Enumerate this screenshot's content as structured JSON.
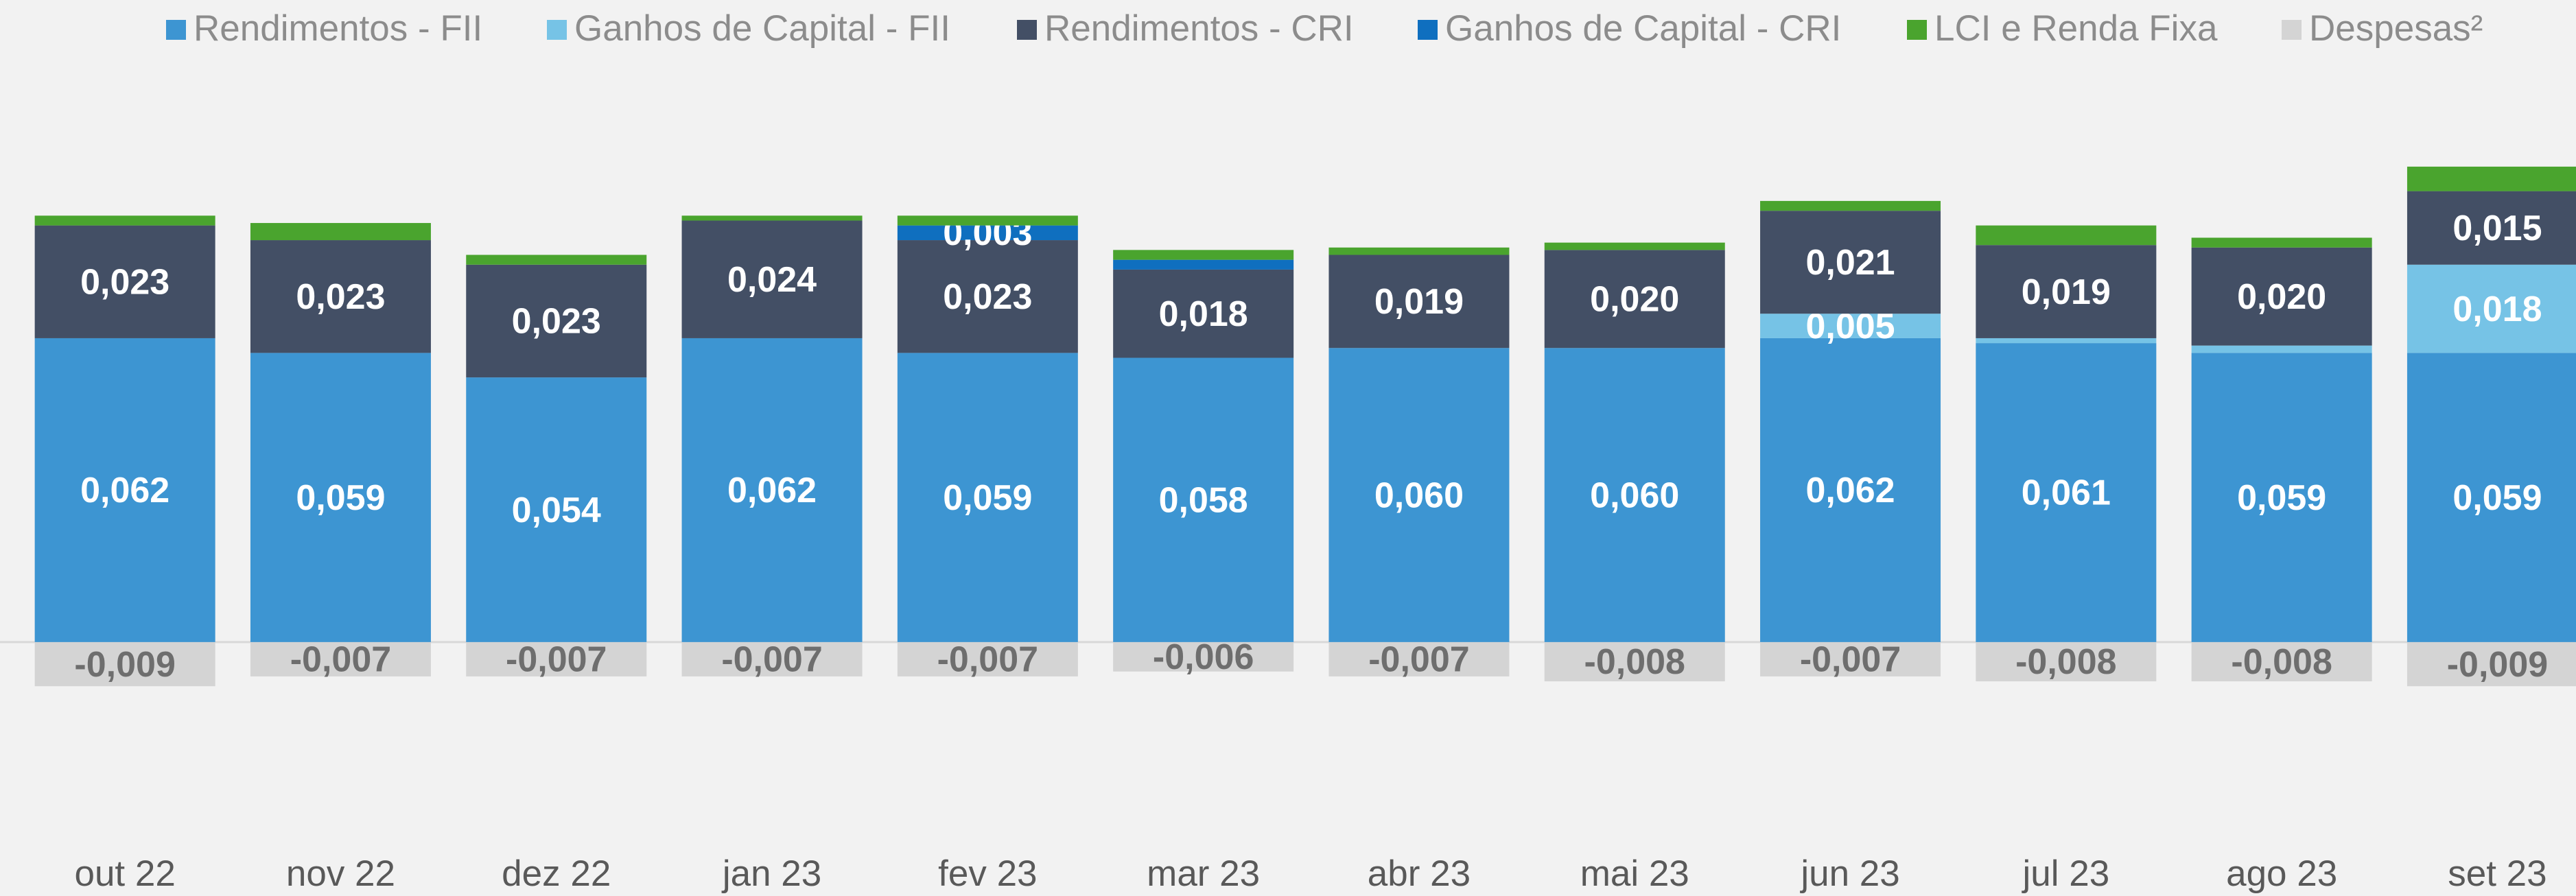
{
  "chart_data": {
    "type": "bar",
    "stacked": true,
    "categories": [
      "out 22",
      "nov 22",
      "dez 22",
      "jan 23",
      "fev 23",
      "mar 23",
      "abr 23",
      "mai 23",
      "jun 23",
      "jul 23",
      "ago 23",
      "set 23"
    ],
    "ylim": [
      -0.035,
      0.11
    ],
    "series": [
      {
        "name": "Rendimentos - FII",
        "color": "#3d95d2",
        "values": [
          0.062,
          0.059,
          0.054,
          0.062,
          0.059,
          0.058,
          0.06,
          0.06,
          0.062,
          0.061,
          0.059,
          0.059
        ],
        "value_labels": [
          "0,062",
          "0,059",
          "0,054",
          "0,062",
          "0,059",
          "0,058",
          "0,060",
          "0,060",
          "0,062",
          "0,061",
          "0,059",
          "0,059"
        ]
      },
      {
        "name": "Ganhos de Capital - FII",
        "color": "#76c3e6",
        "values": [
          0,
          0,
          0,
          0,
          0,
          0,
          0,
          0,
          0.005,
          0.001,
          0.0015,
          0.018
        ],
        "value_labels": [
          null,
          null,
          null,
          null,
          null,
          null,
          null,
          null,
          "0,005",
          null,
          null,
          "0,018"
        ]
      },
      {
        "name": "Rendimentos - CRI",
        "color": "#434f65",
        "values": [
          0.023,
          0.023,
          0.023,
          0.024,
          0.023,
          0.018,
          0.019,
          0.02,
          0.021,
          0.019,
          0.02,
          0.015
        ],
        "value_labels": [
          "0,023",
          "0,023",
          "0,023",
          "0,024",
          "0,023",
          "0,018",
          "0,019",
          "0,020",
          "0,021",
          "0,019",
          "0,020",
          "0,015"
        ]
      },
      {
        "name": "Ganhos de Capital - CRI",
        "color": "#0f6fbf",
        "values": [
          0,
          0,
          0,
          0,
          0.003,
          0.002,
          0,
          0,
          0,
          0,
          0,
          0
        ],
        "value_labels": [
          null,
          null,
          null,
          null,
          "0,003",
          null,
          null,
          null,
          null,
          null,
          null,
          null
        ]
      },
      {
        "name": "LCI e Renda Fixa",
        "color": "#4aa42e",
        "values": [
          0.002,
          0.0035,
          0.002,
          0.001,
          0.002,
          0.002,
          0.0015,
          0.0015,
          0.002,
          0.004,
          0.002,
          0.005
        ],
        "value_labels": [
          null,
          null,
          null,
          null,
          null,
          null,
          null,
          null,
          null,
          null,
          null,
          null
        ]
      },
      {
        "name": "Despesas²",
        "color": "#d4d4d4",
        "values": [
          -0.009,
          -0.007,
          -0.007,
          -0.007,
          -0.007,
          -0.006,
          -0.007,
          -0.008,
          -0.007,
          -0.008,
          -0.008,
          -0.009
        ],
        "value_labels": [
          "-0,009",
          "-0,007",
          "-0,007",
          "-0,007",
          "-0,007",
          "-0,006",
          "-0,007",
          "-0,008",
          "-0,007",
          "-0,008",
          "-0,008",
          "-0,009"
        ]
      }
    ]
  }
}
